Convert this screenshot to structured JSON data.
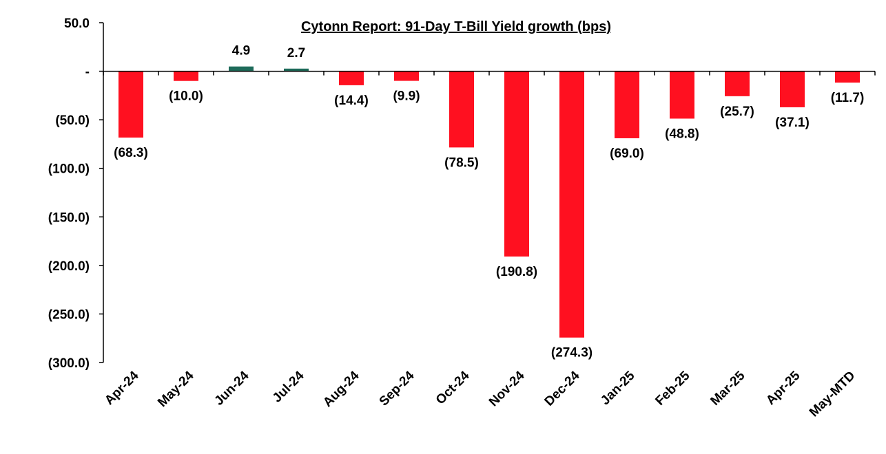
{
  "chart_data": {
    "type": "bar",
    "title": "Cytonn Report:  91-Day T-Bill Yield growth (bps)",
    "xlabel": "",
    "ylabel": "",
    "categories": [
      "Apr-24",
      "May-24",
      "Jun-24",
      "Jul-24",
      "Aug-24",
      "Sep-24",
      "Oct-24",
      "Nov-24",
      "Dec-24",
      "Jan-25",
      "Feb-25",
      "Mar-25",
      "Apr-25",
      "May-MTD"
    ],
    "values": [
      -68.3,
      -10.0,
      4.9,
      2.7,
      -14.4,
      -9.9,
      -78.5,
      -190.8,
      -274.3,
      -69.0,
      -48.8,
      -25.7,
      -37.1,
      -11.7
    ],
    "data_labels": [
      "(68.3)",
      "(10.0)",
      "4.9",
      "2.7",
      "(14.4)",
      "(9.9)",
      "(78.5)",
      "(190.8)",
      "(274.3)",
      "(69.0)",
      "(48.8)",
      "(25.7)",
      "(37.1)",
      "(11.7)"
    ],
    "ylim": [
      -300,
      50
    ],
    "yticks": [
      50,
      0,
      -50,
      -100,
      -150,
      -200,
      -250,
      -300
    ],
    "ytick_labels": [
      "50.0",
      "-",
      "(50.0)",
      "(100.0)",
      "(150.0)",
      "(200.0)",
      "(250.0)",
      "(300.0)"
    ],
    "grid": false,
    "legend": "none",
    "colors": {
      "negative": "#ff1020",
      "positive": "#1e6b5a",
      "axis": "#000000"
    }
  }
}
